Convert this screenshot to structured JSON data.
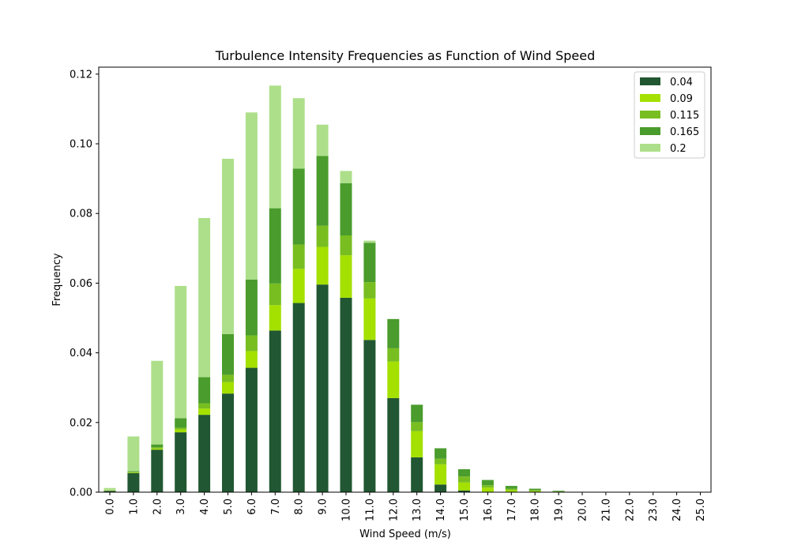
{
  "chart_data": {
    "type": "bar",
    "stacked": true,
    "title": "Turbulence Intensity Frequencies as Function of Wind Speed",
    "xlabel": "Wind Speed (m/s)",
    "ylabel": "Frequency",
    "ylim": [
      0,
      0.122
    ],
    "y_ticks": [
      "0.00",
      "0.02",
      "0.04",
      "0.06",
      "0.08",
      "0.10",
      "0.12"
    ],
    "grid": false,
    "legend_position": "top-right",
    "categories": [
      "0.0",
      "1.0",
      "2.0",
      "3.0",
      "4.0",
      "5.0",
      "6.0",
      "7.0",
      "8.0",
      "9.0",
      "10.0",
      "11.0",
      "12.0",
      "13.0",
      "14.0",
      "15.0",
      "16.0",
      "17.0",
      "18.0",
      "19.0",
      "20.0",
      "21.0",
      "22.0",
      "23.0",
      "24.0",
      "25.0"
    ],
    "series": [
      {
        "name": "0.04",
        "color": "#215732",
        "values": [
          0.0004,
          0.0055,
          0.0122,
          0.0172,
          0.0222,
          0.0283,
          0.0357,
          0.0464,
          0.0543,
          0.0596,
          0.0558,
          0.0437,
          0.027,
          0.01,
          0.0022,
          0.0005,
          0.0001,
          0.0,
          0.0,
          0.0,
          0.0,
          0.0,
          0.0,
          0.0,
          0.0,
          0.0
        ]
      },
      {
        "name": "0.09",
        "color": "#a4e000",
        "values": [
          0.0001,
          0.0002,
          0.0003,
          0.0008,
          0.0018,
          0.0033,
          0.0048,
          0.0073,
          0.0098,
          0.0108,
          0.0122,
          0.0119,
          0.0105,
          0.0075,
          0.0058,
          0.0023,
          0.0012,
          0.0006,
          0.0003,
          0.0001,
          0.0,
          0.0,
          0.0,
          0.0,
          0.0,
          0.0
        ]
      },
      {
        "name": "0.115",
        "color": "#78be20",
        "values": [
          0.0,
          0.0001,
          0.0004,
          0.0005,
          0.0015,
          0.0021,
          0.0045,
          0.0062,
          0.007,
          0.0061,
          0.0057,
          0.0047,
          0.0038,
          0.0026,
          0.0016,
          0.0017,
          0.0007,
          0.0004,
          0.0003,
          0.0001,
          0.0,
          0.0,
          0.0,
          0.0,
          0.0,
          0.0
        ]
      },
      {
        "name": "0.165",
        "color": "#4a9c2d",
        "values": [
          0.0,
          0.0002,
          0.0008,
          0.0027,
          0.0075,
          0.0117,
          0.016,
          0.0216,
          0.0218,
          0.02,
          0.015,
          0.0113,
          0.0084,
          0.005,
          0.003,
          0.0021,
          0.0015,
          0.0008,
          0.0004,
          0.0002,
          0.0001,
          0.0001,
          0.0,
          0.0,
          0.0,
          0.0
        ]
      },
      {
        "name": "0.2",
        "color": "#addf8a",
        "values": [
          0.0007,
          0.01,
          0.024,
          0.038,
          0.0457,
          0.0503,
          0.048,
          0.0352,
          0.0202,
          0.009,
          0.0035,
          0.0006,
          0.0,
          0.0,
          0.0,
          0.0,
          0.0,
          0.0,
          0.0,
          0.0,
          0.0,
          0.0,
          0.0,
          0.0,
          0.0,
          0.0
        ]
      }
    ]
  }
}
